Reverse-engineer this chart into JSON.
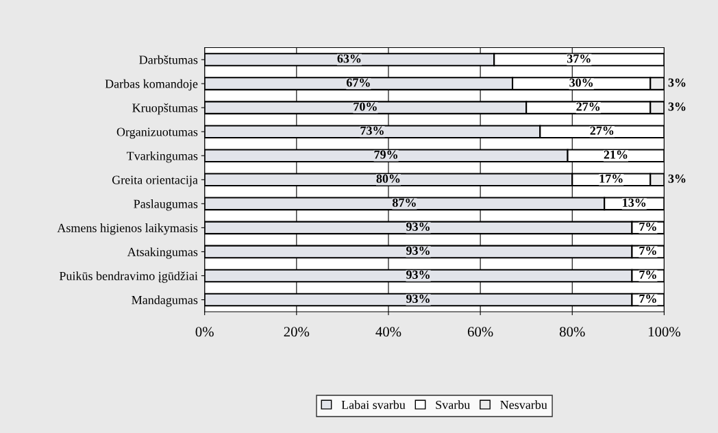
{
  "chart_data": {
    "type": "bar",
    "orientation": "horizontal",
    "stacked": true,
    "categories": [
      "Darbštumas",
      "Darbas komandoje",
      "Kruopštumas",
      "Organizuotumas",
      "Tvarkingumas",
      "Greita orientacija",
      "Paslaugumas",
      "Asmens higienos laikymasis",
      "Atsakingumas",
      "Puikūs bendravimo įgūdžiai",
      "Mandagumas"
    ],
    "series": [
      {
        "name": "Labai svarbu",
        "color": "#e2e4ea",
        "values": [
          63,
          67,
          70,
          73,
          79,
          80,
          87,
          93,
          93,
          93,
          93
        ],
        "value_labels": [
          "63%",
          "67%",
          "70%",
          "73%",
          "79%",
          "80%",
          "87%",
          "93%",
          "93%",
          "93%",
          "93%"
        ]
      },
      {
        "name": "Svarbu",
        "color": "#ffffff",
        "values": [
          37,
          30,
          27,
          27,
          21,
          17,
          13,
          7,
          7,
          7,
          7
        ],
        "value_labels": [
          "37%",
          "30%",
          "27%",
          "27%",
          "21%",
          "17%",
          "13%",
          "7%",
          "7%",
          "7%",
          "7%"
        ]
      },
      {
        "name": "Nesvarbu",
        "color": "#ececec",
        "values": [
          null,
          3,
          3,
          null,
          null,
          3,
          null,
          null,
          null,
          null,
          null
        ],
        "value_labels": [
          null,
          "3%",
          "3%",
          null,
          null,
          "3%",
          null,
          null,
          null,
          null,
          null
        ]
      }
    ],
    "xlim": [
      0,
      100
    ],
    "xticks": [
      {
        "value": 0,
        "label": "0%"
      },
      {
        "value": 20,
        "label": "20%"
      },
      {
        "value": 40,
        "label": "40%"
      },
      {
        "value": 60,
        "label": "60%"
      },
      {
        "value": 80,
        "label": "80%"
      },
      {
        "value": 100,
        "label": "100%"
      }
    ],
    "grid": "x",
    "legend": "bottom"
  }
}
